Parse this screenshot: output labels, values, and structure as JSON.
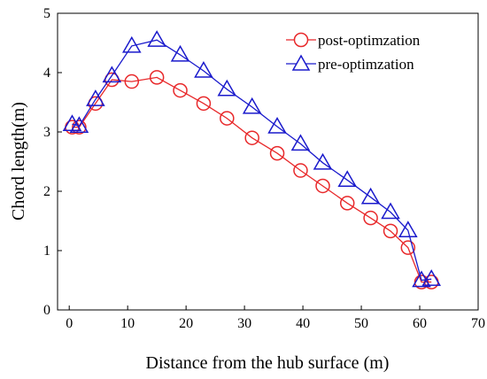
{
  "chart_data": {
    "type": "line",
    "xlabel": "Distance from the hub surface (m)",
    "ylabel": "Chord length(m)",
    "xlim": [
      -2,
      70
    ],
    "ylim": [
      0,
      5
    ],
    "xticks": [
      0,
      10,
      20,
      30,
      40,
      50,
      60,
      70
    ],
    "yticks": [
      0,
      1,
      2,
      3,
      4,
      5
    ],
    "grid": false,
    "legend_position": "top-right",
    "series": [
      {
        "name": "post-optimzation",
        "marker": "circle",
        "color": "#e8282a",
        "x": [
          0.5,
          1.7,
          4.5,
          7.3,
          10.7,
          15.0,
          19.0,
          23.0,
          27.0,
          31.3,
          35.6,
          39.6,
          43.4,
          47.6,
          51.6,
          55.0,
          58.0,
          60.3,
          62.0
        ],
        "y": [
          3.08,
          3.08,
          3.48,
          3.88,
          3.85,
          3.92,
          3.7,
          3.48,
          3.23,
          2.9,
          2.64,
          2.35,
          2.09,
          1.8,
          1.55,
          1.33,
          1.05,
          0.47,
          0.47
        ]
      },
      {
        "name": "pre-optimzation",
        "marker": "triangle",
        "color": "#1a1acc",
        "x": [
          0.5,
          1.7,
          4.5,
          7.3,
          10.7,
          15.0,
          19.0,
          23.0,
          27.0,
          31.3,
          35.6,
          39.6,
          43.4,
          47.6,
          51.6,
          55.0,
          58.0,
          60.3,
          62.0
        ],
        "y": [
          3.13,
          3.1,
          3.55,
          3.95,
          4.45,
          4.55,
          4.3,
          4.03,
          3.72,
          3.42,
          3.09,
          2.8,
          2.48,
          2.19,
          1.9,
          1.65,
          1.34,
          0.5,
          0.52
        ]
      }
    ]
  }
}
